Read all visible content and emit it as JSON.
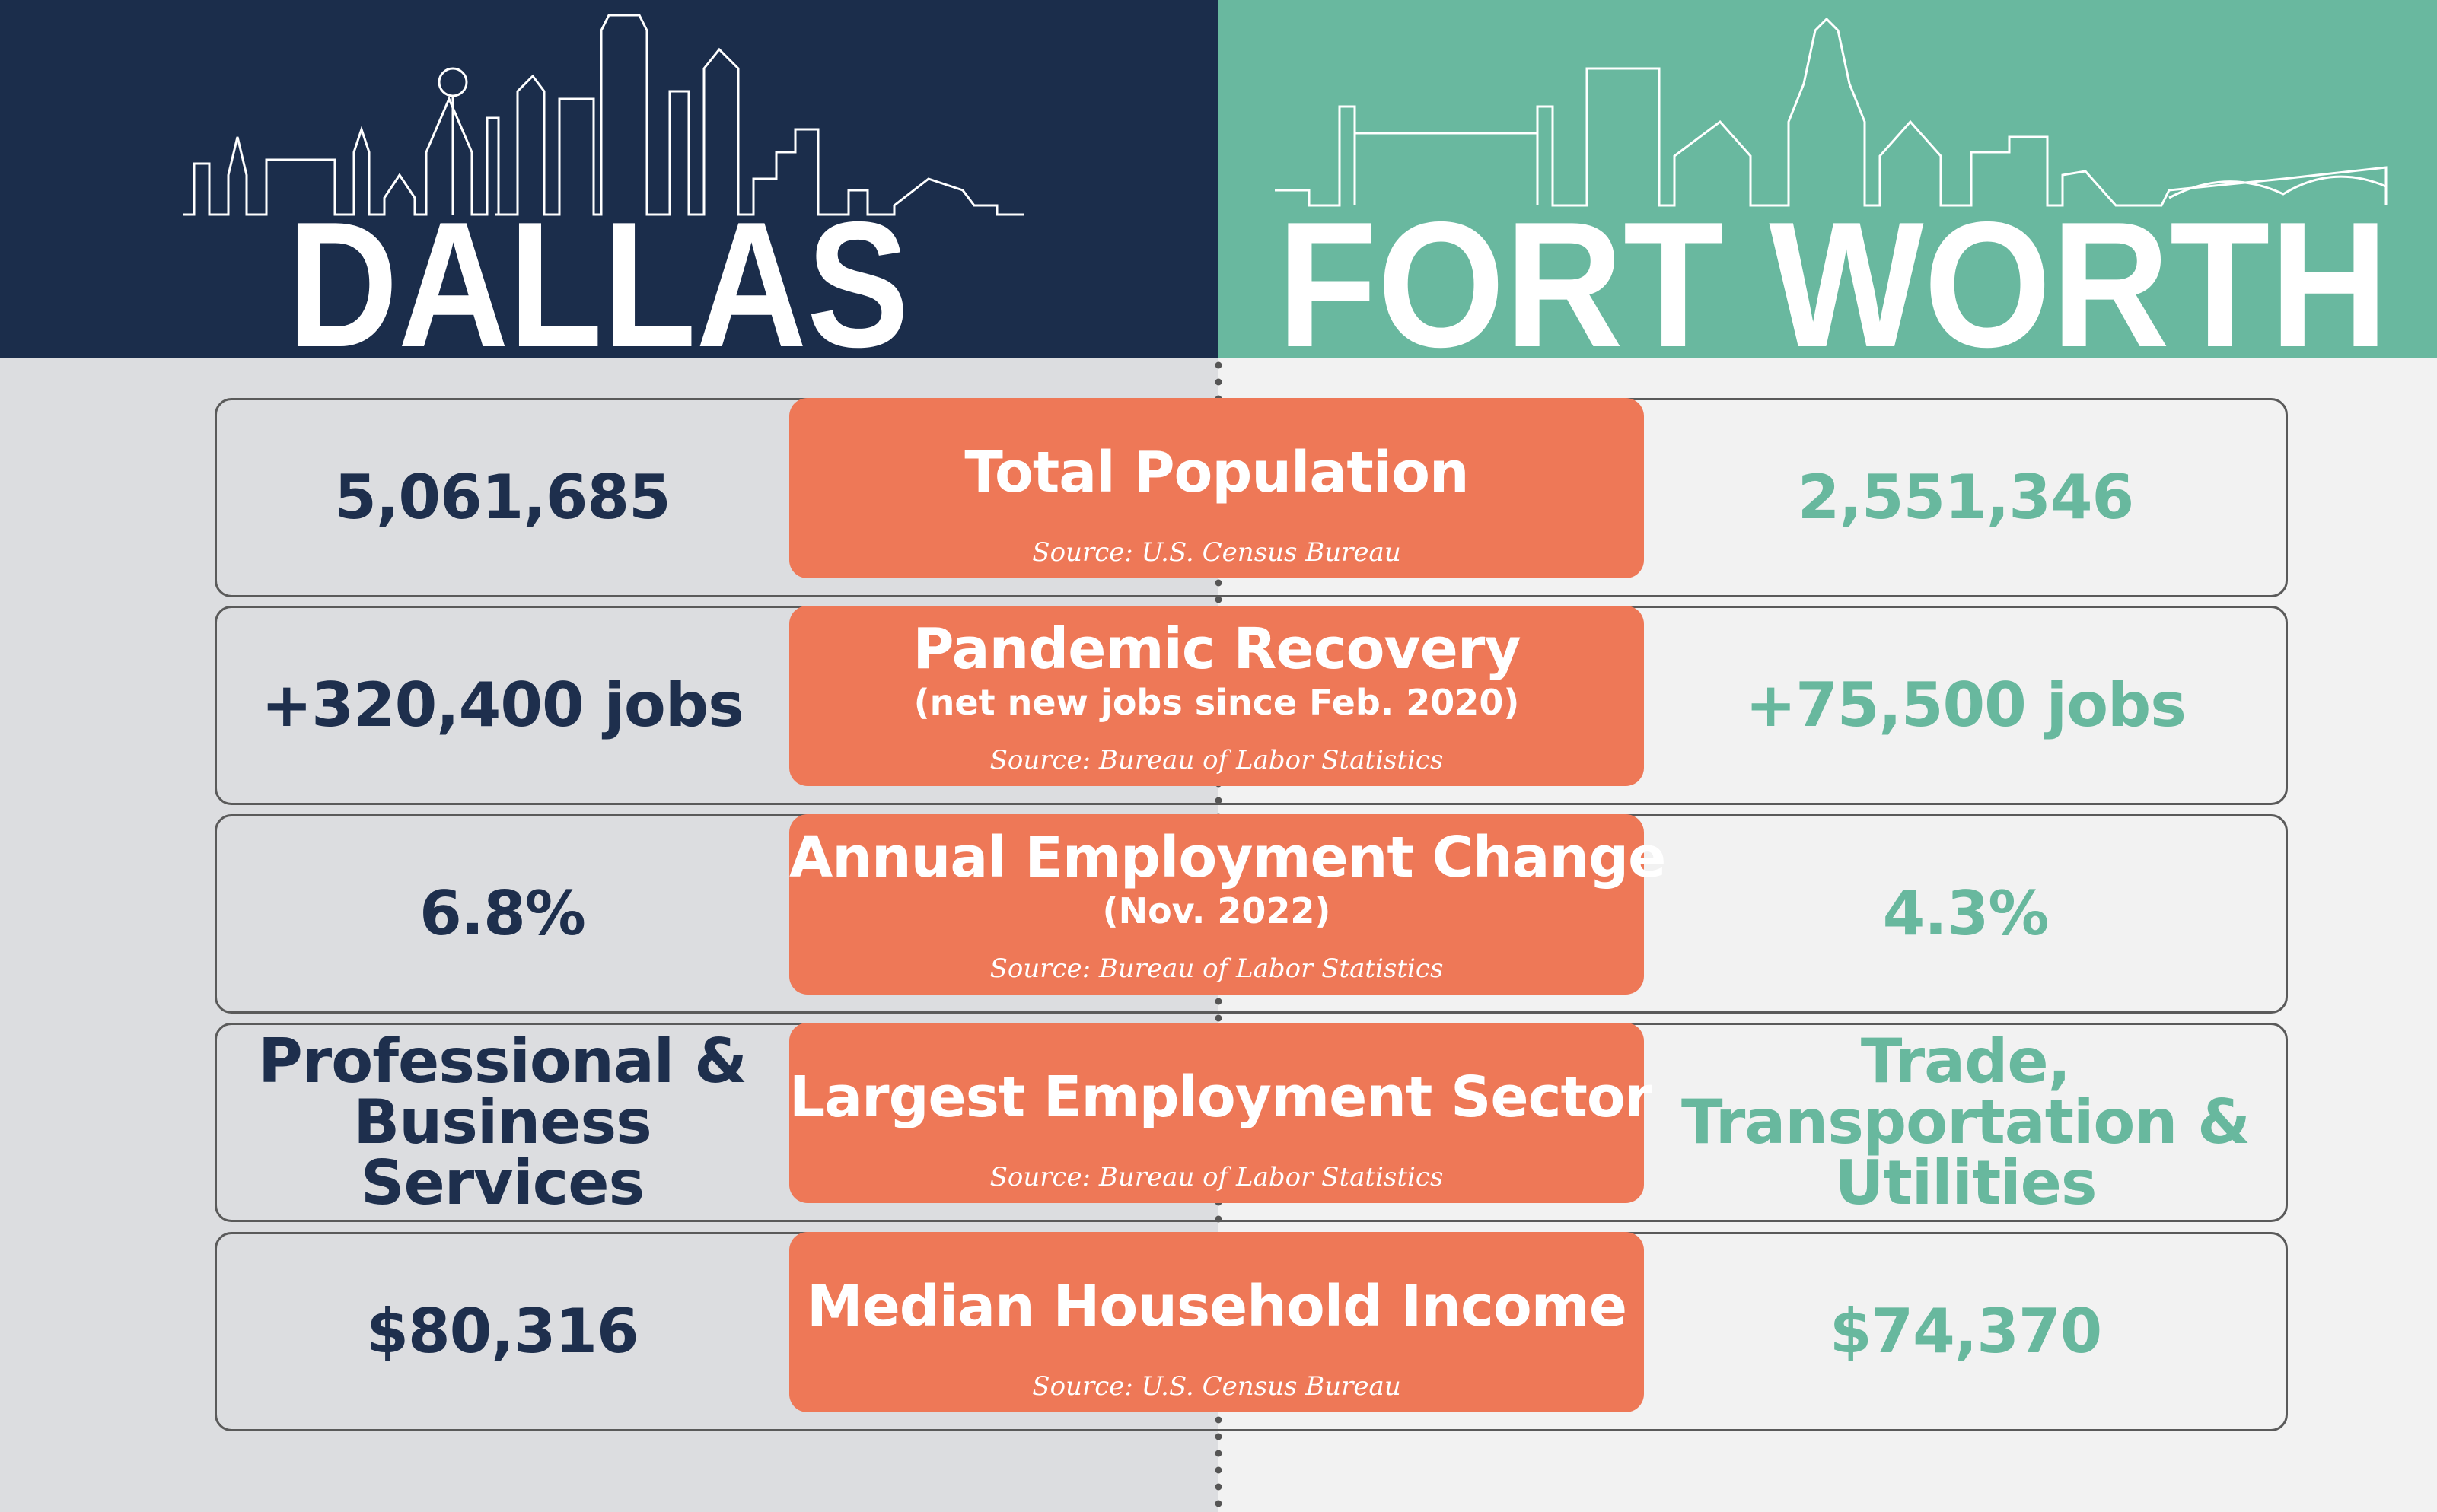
{
  "header": {
    "left_city": "DALLAS",
    "right_city": "FORT WORTH"
  },
  "rows": [
    {
      "left": "5,061,685",
      "metric": "Total Population",
      "source": "Source: U.S. Census Bureau",
      "right": "2,551,346"
    },
    {
      "left": "+320,400 jobs",
      "metric": "Pandemic Recovery",
      "note": "(net new jobs since Feb. 2020)",
      "source": "Source: Bureau of Labor Statistics",
      "right": "+75,500 jobs"
    },
    {
      "left": "6.8%",
      "metric": "Annual Employment Change",
      "note": "(Nov. 2022)",
      "source": "Source: Bureau of Labor Statistics",
      "right": "4.3%"
    },
    {
      "left": "Professional & Business Services",
      "metric": "Largest Employment Sector",
      "source": "Source: Bureau of Labor Statistics",
      "right": "Trade, Transportation & Utilities"
    },
    {
      "left": "$80,316",
      "metric": "Median Household Income",
      "source": "Source: U.S. Census Bureau",
      "right": "$74,370"
    }
  ]
}
